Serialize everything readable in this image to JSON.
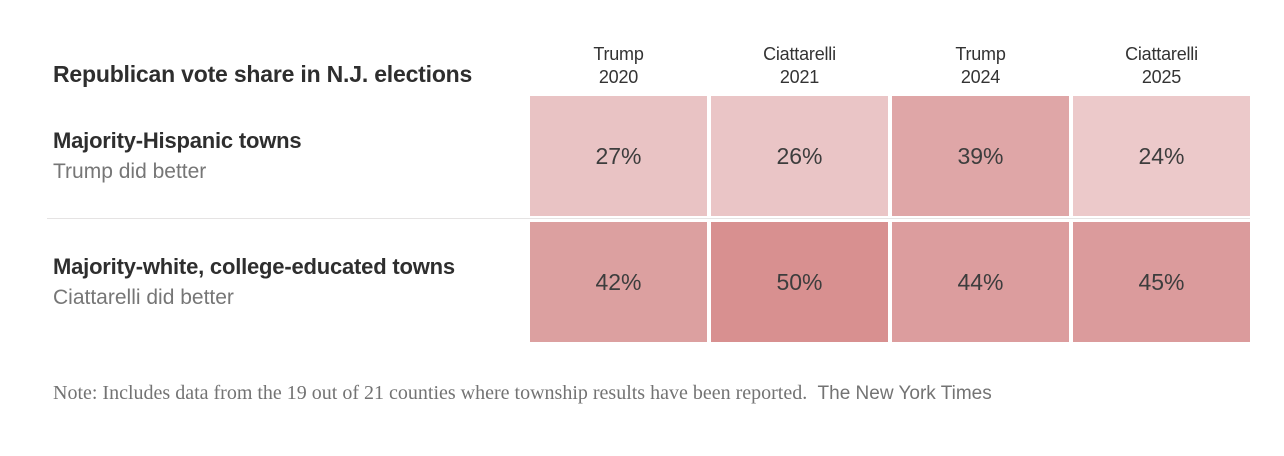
{
  "title": "Republican vote share in N.J. elections",
  "columns": [
    {
      "line1": "Trump",
      "line2": "2020"
    },
    {
      "line1": "Ciattarelli",
      "line2": "2021"
    },
    {
      "line1": "Trump",
      "line2": "2024"
    },
    {
      "line1": "Ciattarelli",
      "line2": "2025"
    }
  ],
  "rows": [
    {
      "label": "Majority-Hispanic towns",
      "sublabel": "Trump did better",
      "cells": [
        {
          "value": "27%",
          "color": "#e9c3c4"
        },
        {
          "value": "26%",
          "color": "#eac5c6"
        },
        {
          "value": "39%",
          "color": "#dfa6a7"
        },
        {
          "value": "24%",
          "color": "#ecc9ca"
        }
      ]
    },
    {
      "label": "Majority-white, college-educated towns",
      "sublabel": "Ciattarelli did better",
      "cells": [
        {
          "value": "42%",
          "color": "#dca0a0"
        },
        {
          "value": "50%",
          "color": "#d89090"
        },
        {
          "value": "44%",
          "color": "#dc9d9e"
        },
        {
          "value": "45%",
          "color": "#db9b9c"
        }
      ]
    }
  ],
  "note": {
    "text": "Note: Includes data from the 19 out of 21 counties where township results have been reported.",
    "credit": "The New York Times"
  },
  "chart_data": {
    "type": "heatmap",
    "title": "Republican vote share in N.J. elections",
    "categories": [
      "Trump 2020",
      "Ciattarelli 2021",
      "Trump 2024",
      "Ciattarelli 2025"
    ],
    "series": [
      {
        "name": "Majority-Hispanic towns (Trump did better)",
        "values": [
          27,
          26,
          39,
          24
        ]
      },
      {
        "name": "Majority-white, college-educated towns (Ciattarelli did better)",
        "values": [
          42,
          50,
          44,
          45
        ]
      }
    ],
    "unit": "%",
    "value_range": [
      24,
      50
    ],
    "color_scale": {
      "min_value": 24,
      "min_color": "#ecc9ca",
      "max_value": 50,
      "max_color": "#d89090"
    },
    "note": "Includes data from the 19 out of 21 counties where township results have been reported.",
    "credit": "The New York Times",
    "legend": "none",
    "grid": "off"
  }
}
